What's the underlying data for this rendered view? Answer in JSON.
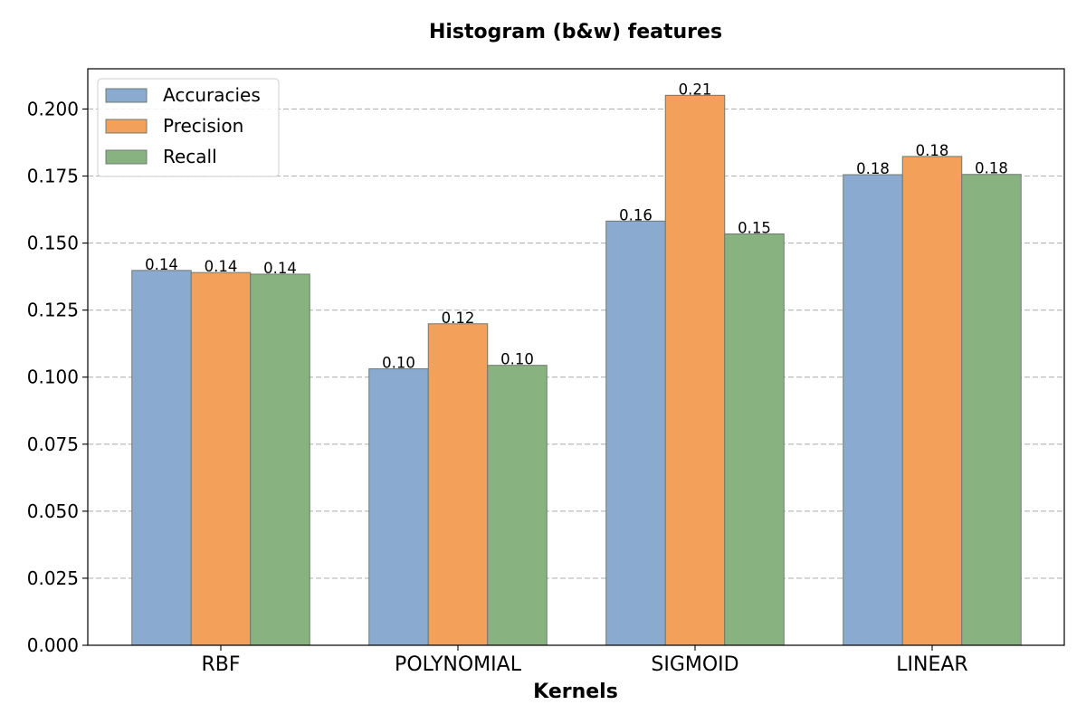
{
  "chart_data": {
    "type": "bar",
    "title": "Histogram (b&w) features",
    "xlabel": "Kernels",
    "ylabel": "",
    "categories": [
      "RBF",
      "POLYNOMIAL",
      "SIGMOID",
      "LINEAR"
    ],
    "series": [
      {
        "name": "Accuracies",
        "color": "#8aaacf",
        "values": [
          0.1398,
          0.1031,
          0.1582,
          0.1755
        ],
        "labels": [
          "0.14",
          "0.10",
          "0.16",
          "0.18"
        ]
      },
      {
        "name": "Precision",
        "color": "#f2a05a",
        "values": [
          0.139,
          0.1199,
          0.2051,
          0.1823
        ],
        "labels": [
          "0.14",
          "0.12",
          "0.21",
          "0.18"
        ]
      },
      {
        "name": "Recall",
        "color": "#88b27f",
        "values": [
          0.1384,
          0.1044,
          0.1534,
          0.1756
        ],
        "labels": [
          "0.14",
          "0.10",
          "0.15",
          "0.18"
        ]
      }
    ],
    "ylim": [
      0,
      0.215
    ],
    "yticks": [
      "0.000",
      "0.025",
      "0.050",
      "0.075",
      "0.100",
      "0.125",
      "0.150",
      "0.175",
      "0.200"
    ],
    "ytick_values": [
      0,
      0.025,
      0.05,
      0.075,
      0.1,
      0.125,
      0.15,
      0.175,
      0.2
    ],
    "grid": "y-dashed",
    "legend_position": "top-left"
  }
}
